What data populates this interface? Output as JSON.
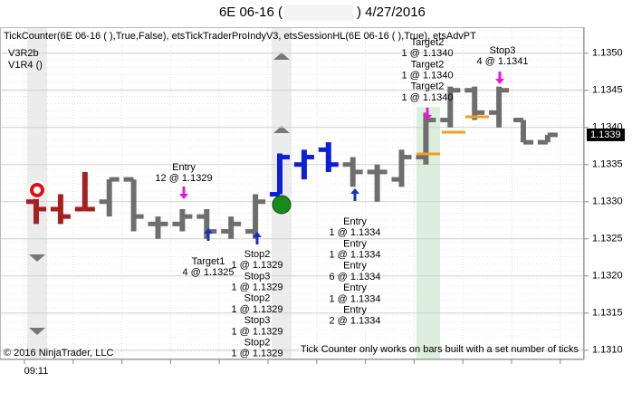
{
  "header": {
    "title_left": "6E 06-16 (",
    "title_right": ")  4/27/2016"
  },
  "chart_data": {
    "type": "ohlc",
    "indicator_line": "TickCounter(6E 06-16 (                    ),True,False), etsTickTraderProIndyV3, etsSessionHL(6E 06-16 (                    ),True), etsAdvPT",
    "version_lines": [
      "V3R2b",
      "V1R4 ()"
    ],
    "copyright": "© 2016 NinjaTrader, LLC",
    "notice": "Tick Counter only works on bars built with a set number of ticks",
    "categories": [
      "09:11",
      null,
      null,
      null,
      null,
      null,
      null,
      null,
      null,
      null,
      null,
      null,
      null,
      null,
      null,
      null,
      null,
      null,
      null,
      null,
      null,
      null
    ],
    "open": [
      1.133,
      1.1329,
      1.1329,
      1.133,
      1.1333,
      1.1327,
      1.1327,
      1.1328,
      1.1326,
      1.1326,
      1.1331,
      1.1335,
      1.1337,
      1.1335,
      1.1334,
      1.1333,
      1.1336,
      1.1341,
      1.1345,
      1.1342,
      1.1341,
      1.1338
    ],
    "high": [
      1.1332,
      1.1331,
      1.1334,
      1.1333,
      1.1333,
      1.1328,
      1.1329,
      1.1329,
      1.1328,
      1.1331,
      1.13365,
      1.1337,
      1.1338,
      1.1336,
      1.1335,
      1.1337,
      1.1342,
      1.13455,
      1.13455,
      1.13455,
      1.1341,
      1.1339
    ],
    "low": [
      1.1327,
      1.1327,
      1.1329,
      1.1328,
      1.1326,
      1.1325,
      1.1326,
      1.1325,
      1.1325,
      1.1325,
      1.1331,
      1.1333,
      1.1334,
      1.1332,
      1.133,
      1.1332,
      1.1335,
      1.134,
      1.1341,
      1.134,
      1.1338,
      1.1338
    ],
    "close": [
      1.1329,
      1.1328,
      1.1329,
      1.1333,
      1.1328,
      1.1327,
      1.1328,
      1.1326,
      1.1327,
      1.133,
      1.1336,
      1.1336,
      1.1335,
      1.1334,
      1.1334,
      1.1336,
      1.1341,
      1.1345,
      1.1342,
      1.1345,
      1.1338,
      1.1339
    ],
    "colors": [
      "#a52020",
      "#a52020",
      "#a52020",
      "#6e6e6e",
      "#6e6e6e",
      "#6e6e6e",
      "#6e6e6e",
      "#6e6e6e",
      "#6e6e6e",
      "#6e6e6e",
      "#0a1edc",
      "#0a1edc",
      "#0a1edc",
      "#6e6e6e",
      "#6e6e6e",
      "#6e6e6e",
      "#6e6e6e",
      "#6e6e6e",
      "#6e6e6e",
      "#6e6e6e",
      "#6e6e6e",
      "#6e6e6e"
    ],
    "annotations": [
      [
        "Entry",
        "12 @ 1.1329"
      ],
      [
        "Target1",
        "4 @ 1.1325"
      ],
      [
        "Stop2",
        "1 @ 1.1329",
        "Stop3",
        "1 @ 1.1329",
        "Stop2",
        "1 @ 1.1329",
        "Stop3",
        "1 @ 1.1329",
        "Stop2",
        "1 @ 1.1329"
      ],
      [
        "Entry",
        "1 @ 1.1334",
        "Entry",
        "1 @ 1.1334",
        "Entry",
        "6 @ 1.1334",
        "Entry",
        "1 @ 1.1334",
        "Entry",
        "2 @ 1.1334"
      ],
      [
        "Target2",
        "1 @ 1.1340",
        "Target2",
        "1 @ 1.1340",
        "Target2",
        "1 @ 1.1340"
      ],
      [
        "Stop3",
        "4 @ 1.1341"
      ]
    ],
    "last_price": {
      "value": 1.1339,
      "label": "1.1339"
    },
    "ylim": [
      1.1309,
      1.13535
    ],
    "yticks": [
      {
        "value": 1.131,
        "label": "1.1310"
      },
      {
        "value": 1.1315,
        "label": "1.1315"
      },
      {
        "value": 1.132,
        "label": "1.1320"
      },
      {
        "value": 1.1325,
        "label": "1.1325"
      },
      {
        "value": 1.133,
        "label": "1.1330"
      },
      {
        "value": 1.1335,
        "label": "1.1335"
      },
      {
        "value": 1.134,
        "label": "1.1340"
      },
      {
        "value": 1.1345,
        "label": "1.1345"
      },
      {
        "value": 1.135,
        "label": "1.1350"
      }
    ],
    "grid": true
  }
}
